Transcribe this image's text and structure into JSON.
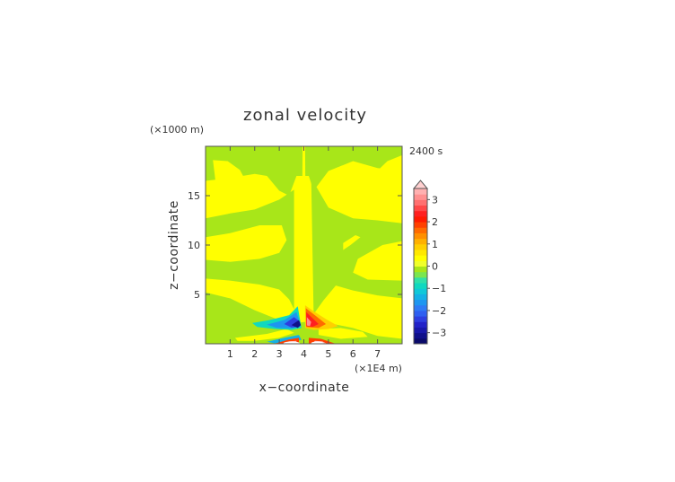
{
  "chart_data": {
    "type": "heatmap",
    "title": "zonal velocity",
    "time_label": "2400 s",
    "xlabel": "x−coordinate",
    "ylabel": "z−coordinate",
    "x_unit": "(×1E4 m)",
    "y_unit": "(×1000 m)",
    "xlim": [
      0,
      8
    ],
    "ylim": [
      0,
      20
    ],
    "x_ticks": [
      1,
      2,
      3,
      4,
      5,
      6,
      7
    ],
    "x_ticklabels": [
      "1",
      "2",
      "3",
      "4",
      "5",
      "6",
      "7"
    ],
    "y_ticks": [
      5,
      10,
      15
    ],
    "y_ticklabels": [
      "5",
      "10",
      "15"
    ],
    "colorbar": {
      "levels": [
        -3.5,
        -3.25,
        -3,
        -2.75,
        -2.5,
        -2.25,
        -2,
        -1.75,
        -1.5,
        -1.25,
        -1,
        -0.75,
        -0.5,
        -0.25,
        0,
        0.25,
        0.5,
        0.75,
        1,
        1.25,
        1.5,
        1.75,
        2,
        2.25,
        2.5,
        2.75,
        3,
        3.25,
        3.5
      ],
      "colors": [
        "#0a0a6a",
        "#10108a",
        "#1818aa",
        "#2222c8",
        "#2e3ee0",
        "#2f5ff0",
        "#2f7af5",
        "#1e96f0",
        "#14b0e6",
        "#10c8d8",
        "#10d8c0",
        "#30e0a8",
        "#7ae650",
        "#a8e619",
        "#f0ff2a",
        "#ffff00",
        "#ffe800",
        "#ffcf00",
        "#ffb000",
        "#ff8f00",
        "#ff6a00",
        "#ff4000",
        "#ff1a00",
        "#ff2020",
        "#ff4848",
        "#ff7070",
        "#ff9090",
        "#ffb0b0"
      ],
      "tick_values": [
        3,
        2,
        1,
        0,
        -1,
        -2,
        -3
      ],
      "tick_labels": [
        "3",
        "2",
        "1",
        "0",
        "−1",
        "−2",
        "−3"
      ],
      "extend": "max"
    },
    "background_colors": {
      "near_zero_positive": "#ffff00",
      "near_zero_negative": "#a8e619"
    },
    "features": [
      {
        "region": "upper-left lobe",
        "x": [
          0.2,
          1.7
        ],
        "z": [
          14,
          19
        ],
        "value": 0.1
      },
      {
        "region": "upper-right lobe",
        "x": [
          6.5,
          8
        ],
        "z": [
          13,
          19
        ],
        "value": 0.1
      },
      {
        "region": "central column",
        "x": [
          3.7,
          4.3
        ],
        "z": [
          0,
          20
        ],
        "value": 0.1
      },
      {
        "region": "left curved band",
        "x": [
          0,
          3.6
        ],
        "z": [
          4,
          12
        ],
        "value": 0.1
      },
      {
        "region": "right curved band",
        "x": [
          4.4,
          8
        ],
        "z": [
          4,
          14
        ],
        "value": 0.1
      },
      {
        "region": "left jet (negative)",
        "x": [
          2.0,
          3.9
        ],
        "z": [
          0.5,
          4
        ],
        "value": -3.0
      },
      {
        "region": "right jet (positive)",
        "x": [
          3.9,
          5.4
        ],
        "z": [
          0.5,
          4
        ],
        "value": 3.0
      },
      {
        "region": "surface maxima",
        "x": [
          3.0,
          5.0
        ],
        "z": [
          0,
          0.5
        ],
        "value": 3.5
      }
    ]
  }
}
